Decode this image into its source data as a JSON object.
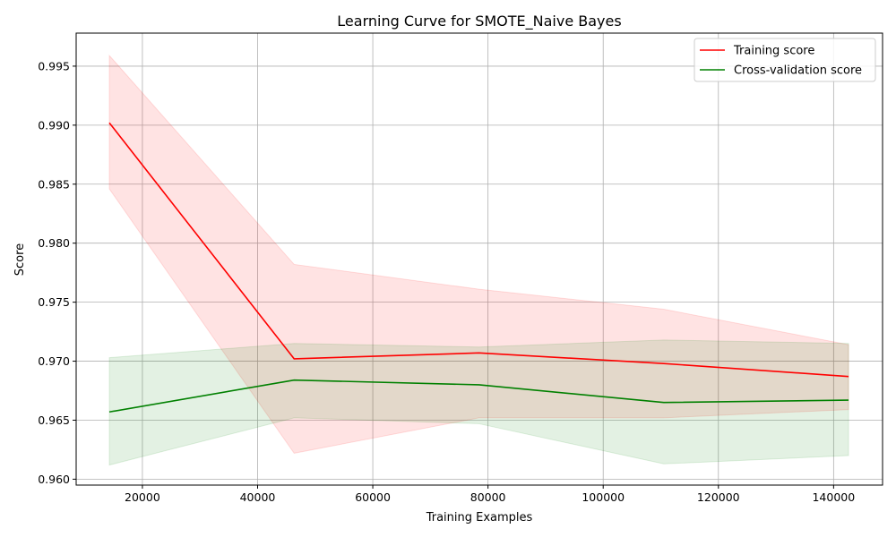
{
  "chart_data": {
    "type": "line",
    "title": "Learning Curve for SMOTE_Naive Bayes",
    "xlabel": "Training Examples",
    "ylabel": "Score",
    "xlim": [
      8500,
      148500
    ],
    "ylim": [
      0.9595,
      0.9978
    ],
    "x_ticks": [
      20000,
      40000,
      60000,
      80000,
      100000,
      120000,
      140000
    ],
    "y_ticks": [
      0.96,
      0.965,
      0.97,
      0.975,
      0.98,
      0.985,
      0.99,
      0.995
    ],
    "grid": true,
    "legend_position": "top-right",
    "x": [
      14259,
      46343,
      78428,
      110512,
      142597
    ],
    "series": [
      {
        "name": "Training score",
        "color": "#ff0000",
        "band_color": "#ffdddd",
        "values": [
          0.9902,
          0.9702,
          0.9707,
          0.9698,
          0.9687
        ],
        "upper": [
          0.9959,
          0.9782,
          0.9761,
          0.9744,
          0.9714
        ],
        "lower": [
          0.9846,
          0.9622,
          0.9652,
          0.9652,
          0.9659
        ]
      },
      {
        "name": "Cross-validation score",
        "color": "#008000",
        "band_color": "#d4ead4",
        "values": [
          0.9657,
          0.9684,
          0.968,
          0.9665,
          0.9667
        ],
        "upper": [
          0.9703,
          0.9715,
          0.9712,
          0.9718,
          0.9715
        ],
        "lower": [
          0.9612,
          0.9652,
          0.9647,
          0.9613,
          0.962
        ]
      }
    ]
  }
}
